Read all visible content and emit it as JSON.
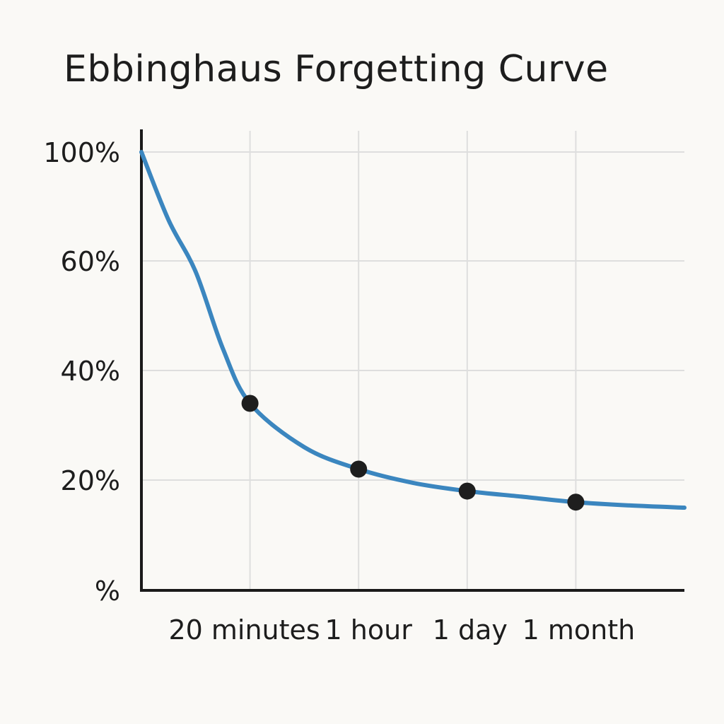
{
  "chart_data": {
    "type": "line",
    "title": "Ebbinghaus Forgetting Curve",
    "xlabel": "",
    "ylabel": "",
    "grid": true,
    "y_ticks": [
      {
        "label": "100%",
        "value": 100
      },
      {
        "label": "60%",
        "value": 60
      },
      {
        "label": "40%",
        "value": 40
      },
      {
        "label": "20%",
        "value": 20
      },
      {
        "label": "%",
        "value": 0
      }
    ],
    "x_ticks": [
      {
        "label": "20 minutes",
        "value": 1
      },
      {
        "label": "1 hour",
        "value": 2
      },
      {
        "label": "1 day",
        "value": 3
      },
      {
        "label": "1 month",
        "value": 4
      }
    ],
    "xlim": [
      0,
      5
    ],
    "curve": {
      "x": [
        0,
        0.25,
        0.5,
        0.75,
        1,
        1.5,
        2,
        2.5,
        3,
        3.5,
        4,
        4.5,
        5
      ],
      "y": [
        100,
        75,
        58,
        44,
        34,
        26,
        22,
        19.5,
        18,
        17,
        16,
        15.4,
        15
      ]
    },
    "points": {
      "x": [
        1,
        2,
        3,
        4
      ],
      "y": [
        34,
        22,
        18,
        16
      ]
    },
    "colors": {
      "line": "#3b86bf",
      "points": "#1e1e1e"
    }
  }
}
